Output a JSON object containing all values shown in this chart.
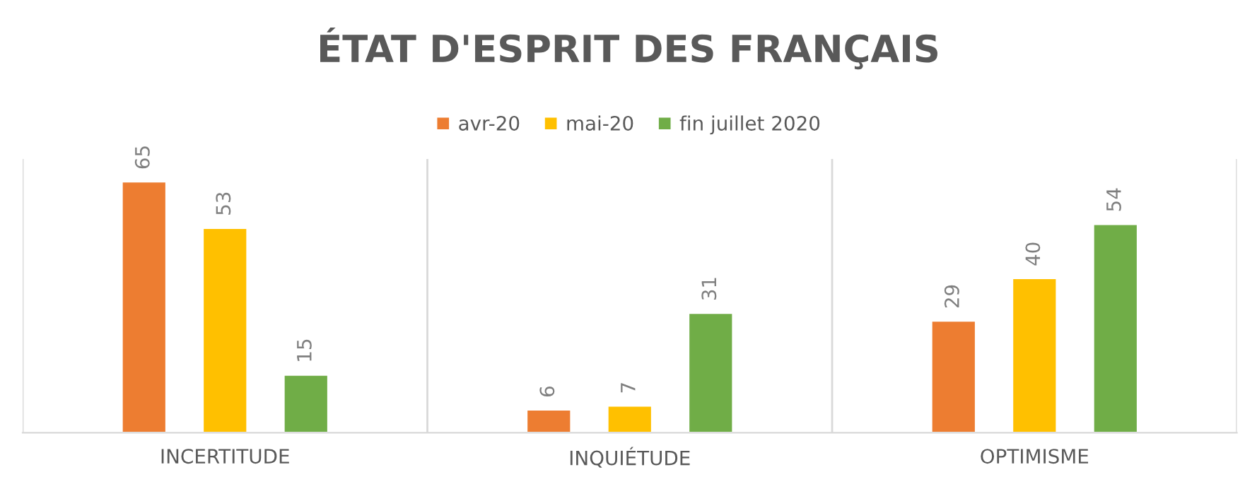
{
  "chart_data": {
    "type": "bar",
    "title": "ÉTAT D'ESPRIT DES FRANÇAIS",
    "categories": [
      "INCERTITUDE",
      "INQUIÉTUDE",
      "OPTIMISME"
    ],
    "series": [
      {
        "name": "avr-20",
        "color": "#ed7d31",
        "values": [
          65,
          6,
          29
        ]
      },
      {
        "name": "mai-20",
        "color": "#ffc000",
        "values": [
          53,
          7,
          40
        ]
      },
      {
        "name": "fin juillet 2020",
        "color": "#70ad47",
        "values": [
          15,
          31,
          54
        ]
      }
    ],
    "data_labels": true,
    "grid": "x",
    "legend": "top",
    "tick_labels": "x"
  }
}
